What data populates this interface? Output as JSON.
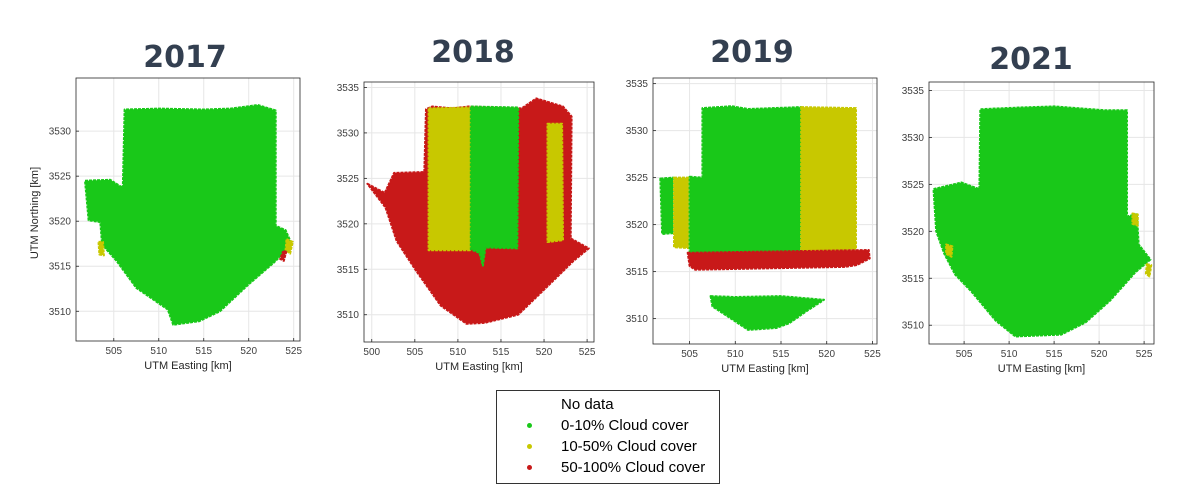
{
  "colors": {
    "no_data": "#ffffff",
    "low": "#19c819",
    "mid": "#c8c800",
    "high": "#c81919"
  },
  "legend": {
    "items": [
      {
        "label": "No data",
        "color": "none"
      },
      {
        "label": "0-10% Cloud cover",
        "color": "#19c819"
      },
      {
        "label": "10-50% Cloud cover",
        "color": "#c8c800"
      },
      {
        "label": "50-100% Cloud cover",
        "color": "#c81919"
      }
    ]
  },
  "chart_data": [
    {
      "type": "scatter",
      "title": "2017",
      "xlabel": "UTM Easting [km]",
      "ylabel": "UTM Northing [km]",
      "xlim": [
        500.8,
        525.7
      ],
      "ylim": [
        3506.7,
        3535.9
      ],
      "xticks": [
        505,
        510,
        515,
        520,
        525
      ],
      "yticks": [
        3510,
        3515,
        3520,
        3525,
        3530
      ],
      "regions": [
        {
          "category": "0-10% Cloud cover",
          "polygon": [
            [
              501.8,
              3524.5
            ],
            [
              504.6,
              3524.6
            ],
            [
              506.0,
              3523.7
            ],
            [
              506.2,
              3532.4
            ],
            [
              510.0,
              3532.5
            ],
            [
              515.0,
              3532.4
            ],
            [
              518.0,
              3532.5
            ],
            [
              521.0,
              3532.9
            ],
            [
              523.0,
              3532.3
            ],
            [
              523.0,
              3519.5
            ],
            [
              524.1,
              3519.0
            ],
            [
              524.8,
              3517.4
            ],
            [
              522.8,
              3515.4
            ],
            [
              520.0,
              3513.0
            ],
            [
              516.8,
              3510.0
            ],
            [
              514.5,
              3508.9
            ],
            [
              511.6,
              3508.5
            ],
            [
              511.0,
              3510.2
            ],
            [
              507.5,
              3512.6
            ],
            [
              505.3,
              3515.6
            ],
            [
              503.7,
              3517.4
            ],
            [
              503.5,
              3519.9
            ],
            [
              502.2,
              3520.1
            ]
          ]
        },
        {
          "category": "10-50% Cloud cover",
          "polygon": [
            [
              503.3,
              3517.7
            ],
            [
              503.8,
              3517.7
            ],
            [
              503.9,
              3516.2
            ],
            [
              503.4,
              3516.3
            ]
          ]
        },
        {
          "category": "10-50% Cloud cover",
          "polygon": [
            [
              524.2,
              3518.0
            ],
            [
              524.9,
              3517.7
            ],
            [
              524.6,
              3516.4
            ],
            [
              524.1,
              3516.8
            ]
          ]
        },
        {
          "category": "50-100% Cloud cover",
          "polygon": [
            [
              523.8,
              3516.6
            ],
            [
              524.2,
              3516.7
            ],
            [
              523.9,
              3515.6
            ],
            [
              523.5,
              3515.8
            ]
          ]
        }
      ]
    },
    {
      "type": "scatter",
      "title": "2018",
      "xlabel": "UTM Easting [km]",
      "ylabel": "",
      "xlim": [
        499.1,
        525.8
      ],
      "ylim": [
        3507.0,
        3535.6
      ],
      "xticks": [
        500,
        505,
        510,
        515,
        520,
        525
      ],
      "yticks": [
        3510,
        3515,
        3520,
        3525,
        3530,
        3535
      ],
      "regions": [
        {
          "category": "50-100% Cloud cover",
          "polygon": [
            [
              499.5,
              3524.4
            ],
            [
              501.5,
              3523.4
            ],
            [
              502.6,
              3525.6
            ],
            [
              506.1,
              3525.7
            ],
            [
              506.3,
              3532.6
            ],
            [
              507.0,
              3532.9
            ],
            [
              509.4,
              3532.7
            ],
            [
              511.2,
              3532.9
            ],
            [
              517.4,
              3532.7
            ],
            [
              519.1,
              3533.8
            ],
            [
              522.2,
              3532.9
            ],
            [
              523.2,
              3531.8
            ],
            [
              523.1,
              3518.4
            ],
            [
              525.2,
              3517.3
            ],
            [
              523.4,
              3515.9
            ],
            [
              520.6,
              3513.3
            ],
            [
              517.0,
              3510.0
            ],
            [
              513.1,
              3509.1
            ],
            [
              511.0,
              3509.0
            ],
            [
              508.0,
              3511.0
            ],
            [
              505.1,
              3514.9
            ],
            [
              502.9,
              3518.1
            ],
            [
              501.6,
              3521.8
            ]
          ]
        },
        {
          "category": "10-50% Cloud cover",
          "polygon": [
            [
              506.6,
              3532.7
            ],
            [
              511.4,
              3532.8
            ],
            [
              511.4,
              3517.1
            ],
            [
              506.6,
              3517.1
            ]
          ]
        },
        {
          "category": "0-10% Cloud cover",
          "polygon": [
            [
              511.5,
              3532.9
            ],
            [
              517.0,
              3532.8
            ],
            [
              516.9,
              3517.3
            ],
            [
              513.2,
              3517.4
            ],
            [
              512.9,
              3515.4
            ],
            [
              512.5,
              3516.8
            ],
            [
              511.5,
              3517.2
            ]
          ]
        },
        {
          "category": "10-50% Cloud cover",
          "polygon": [
            [
              520.4,
              3531.0
            ],
            [
              522.1,
              3531.0
            ],
            [
              522.2,
              3518.2
            ],
            [
              520.4,
              3518.0
            ]
          ]
        }
      ]
    },
    {
      "type": "scatter",
      "title": "2019",
      "xlabel": "UTM Easting [km]",
      "ylabel": "",
      "xlim": [
        501.0,
        525.5
      ],
      "ylim": [
        3507.3,
        3535.6
      ],
      "xticks": [
        505,
        510,
        515,
        520,
        525
      ],
      "yticks": [
        3510,
        3515,
        3520,
        3525,
        3530,
        3535
      ],
      "regions": [
        {
          "category": "0-10% Cloud cover",
          "polygon": [
            [
              501.8,
              3524.9
            ],
            [
              503.2,
              3525.0
            ],
            [
              503.2,
              3519.1
            ],
            [
              502.0,
              3519.0
            ]
          ]
        },
        {
          "category": "10-50% Cloud cover",
          "polygon": [
            [
              503.3,
              3525.0
            ],
            [
              504.9,
              3525.0
            ],
            [
              504.9,
              3517.5
            ],
            [
              503.3,
              3517.6
            ]
          ]
        },
        {
          "category": "0-10% Cloud cover",
          "polygon": [
            [
              505.0,
              3525.1
            ],
            [
              506.4,
              3525.0
            ],
            [
              506.4,
              3532.4
            ],
            [
              509.6,
              3532.6
            ],
            [
              511.4,
              3532.3
            ],
            [
              517.2,
              3532.5
            ],
            [
              517.1,
              3516.8
            ],
            [
              505.0,
              3516.9
            ]
          ]
        },
        {
          "category": "10-50% Cloud cover",
          "polygon": [
            [
              517.2,
              3532.5
            ],
            [
              523.2,
              3532.4
            ],
            [
              523.2,
              3517.4
            ],
            [
              517.2,
              3517.2
            ]
          ]
        },
        {
          "category": "50-100% Cloud cover",
          "polygon": [
            [
              504.8,
              3517.0
            ],
            [
              524.6,
              3517.3
            ],
            [
              524.7,
              3516.4
            ],
            [
              523.3,
              3515.7
            ],
            [
              522.0,
              3515.5
            ],
            [
              505.6,
              3515.2
            ],
            [
              505.0,
              3515.6
            ]
          ]
        },
        {
          "category": "0-10% Cloud cover",
          "polygon": [
            [
              507.3,
              3512.4
            ],
            [
              510.0,
              3512.3
            ],
            [
              515.0,
              3512.4
            ],
            [
              519.7,
              3512.0
            ],
            [
              517.8,
              3510.8
            ],
            [
              515.9,
              3509.5
            ],
            [
              514.5,
              3509.0
            ],
            [
              511.4,
              3508.8
            ],
            [
              509.7,
              3509.9
            ],
            [
              507.5,
              3511.3
            ]
          ]
        }
      ]
    },
    {
      "type": "scatter",
      "title": "2021",
      "xlabel": "UTM Easting [km]",
      "ylabel": "",
      "xlim": [
        501.1,
        526.1
      ],
      "ylim": [
        3508.0,
        3535.9
      ],
      "xticks": [
        505,
        510,
        515,
        520,
        525
      ],
      "yticks": [
        3510,
        3515,
        3520,
        3525,
        3530,
        3535
      ],
      "regions": [
        {
          "category": "0-10% Cloud cover",
          "polygon": [
            [
              501.6,
              3524.5
            ],
            [
              504.7,
              3525.2
            ],
            [
              506.7,
              3524.5
            ],
            [
              506.8,
              3533.0
            ],
            [
              511.5,
              3533.2
            ],
            [
              515.0,
              3533.3
            ],
            [
              520.6,
              3532.9
            ],
            [
              523.1,
              3532.9
            ],
            [
              523.1,
              3521.6
            ],
            [
              524.2,
              3521.8
            ],
            [
              524.4,
              3518.6
            ],
            [
              525.7,
              3517.0
            ],
            [
              524.0,
              3515.6
            ],
            [
              521.2,
              3512.6
            ],
            [
              518.5,
              3510.3
            ],
            [
              515.8,
              3509.0
            ],
            [
              510.7,
              3508.8
            ],
            [
              508.5,
              3510.5
            ],
            [
              505.8,
              3513.6
            ],
            [
              504.0,
              3515.4
            ],
            [
              502.8,
              3517.6
            ],
            [
              501.9,
              3520.0
            ]
          ]
        },
        {
          "category": "10-50% Cloud cover",
          "polygon": [
            [
              503.0,
              3518.6
            ],
            [
              503.7,
              3518.4
            ],
            [
              503.6,
              3517.3
            ],
            [
              503.0,
              3517.6
            ]
          ]
        },
        {
          "category": "10-50% Cloud cover",
          "polygon": [
            [
              523.7,
              3521.9
            ],
            [
              524.3,
              3521.8
            ],
            [
              524.3,
              3520.6
            ],
            [
              523.7,
              3520.8
            ]
          ]
        },
        {
          "category": "10-50% Cloud cover",
          "polygon": [
            [
              525.3,
              3516.5
            ],
            [
              525.8,
              3516.4
            ],
            [
              525.6,
              3515.2
            ],
            [
              525.2,
              3515.5
            ]
          ]
        }
      ]
    }
  ]
}
